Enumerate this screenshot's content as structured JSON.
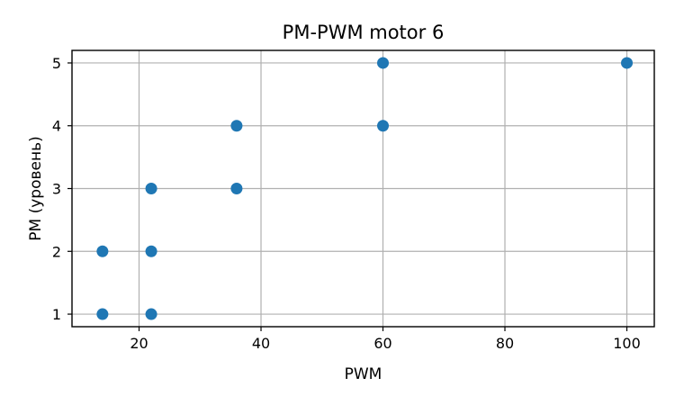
{
  "chart_data": {
    "type": "scatter",
    "title": "PM-PWM motor 6",
    "xlabel": "PWM",
    "ylabel": "PM (уровень)",
    "xlim": [
      9,
      104.5
    ],
    "ylim": [
      0.8,
      5.2
    ],
    "xticks": [
      20,
      40,
      60,
      80,
      100
    ],
    "yticks": [
      1,
      2,
      3,
      4,
      5
    ],
    "grid": true,
    "color": "#1f77b4",
    "points": [
      {
        "x": 14,
        "y": 1
      },
      {
        "x": 14,
        "y": 2
      },
      {
        "x": 22,
        "y": 1
      },
      {
        "x": 22,
        "y": 2
      },
      {
        "x": 22,
        "y": 3
      },
      {
        "x": 36,
        "y": 3
      },
      {
        "x": 36,
        "y": 4
      },
      {
        "x": 60,
        "y": 4
      },
      {
        "x": 60,
        "y": 5
      },
      {
        "x": 100,
        "y": 5
      }
    ]
  }
}
